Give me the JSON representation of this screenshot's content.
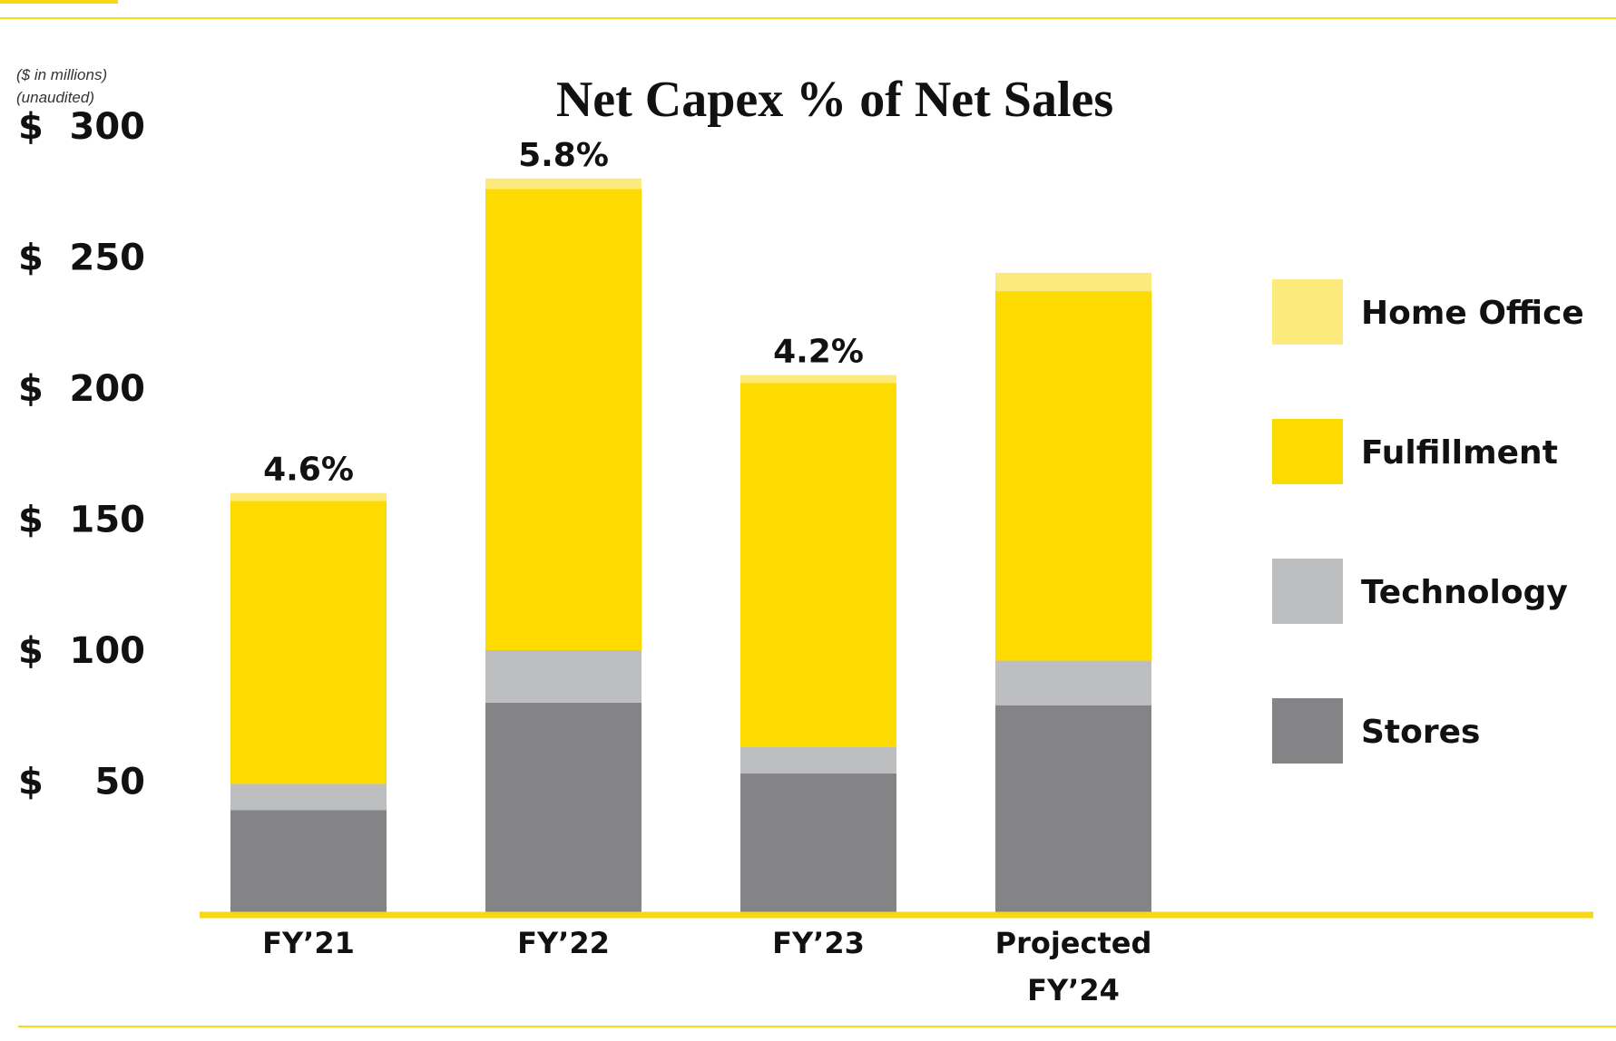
{
  "colors": {
    "accent": "#F6D913",
    "text": "#111111"
  },
  "note": {
    "line1": "($ in millions)",
    "line2": "(unaudited)"
  },
  "chart_data": {
    "type": "bar",
    "stacked": true,
    "title": "Net Capex % of Net Sales",
    "xlabel": "",
    "ylabel": "",
    "ylim": [
      0,
      300
    ],
    "yticks": [
      50,
      100,
      150,
      200,
      250,
      300
    ],
    "ytick_prefix": "$",
    "grid": false,
    "legend_position": "right",
    "categories": [
      [
        "FY’21"
      ],
      [
        "FY’22"
      ],
      [
        "FY’23"
      ],
      [
        "Projected",
        "FY’24"
      ]
    ],
    "series": [
      {
        "name": "Stores",
        "color": "#848487",
        "values": [
          39,
          80,
          53,
          79
        ]
      },
      {
        "name": "Technology",
        "color": "#BDBEC0",
        "values": [
          10,
          20,
          10,
          17
        ]
      },
      {
        "name": "Fulfillment",
        "color": "#FDDB00",
        "values": [
          108,
          176,
          139,
          141
        ]
      },
      {
        "name": "Home Office",
        "color": "#FDEA7D",
        "values": [
          3,
          4,
          3,
          7
        ]
      }
    ],
    "legend_order": [
      "Home Office",
      "Fulfillment",
      "Technology",
      "Stores"
    ],
    "data_labels": [
      "4.6%",
      "5.8%",
      "4.2%",
      ""
    ]
  }
}
